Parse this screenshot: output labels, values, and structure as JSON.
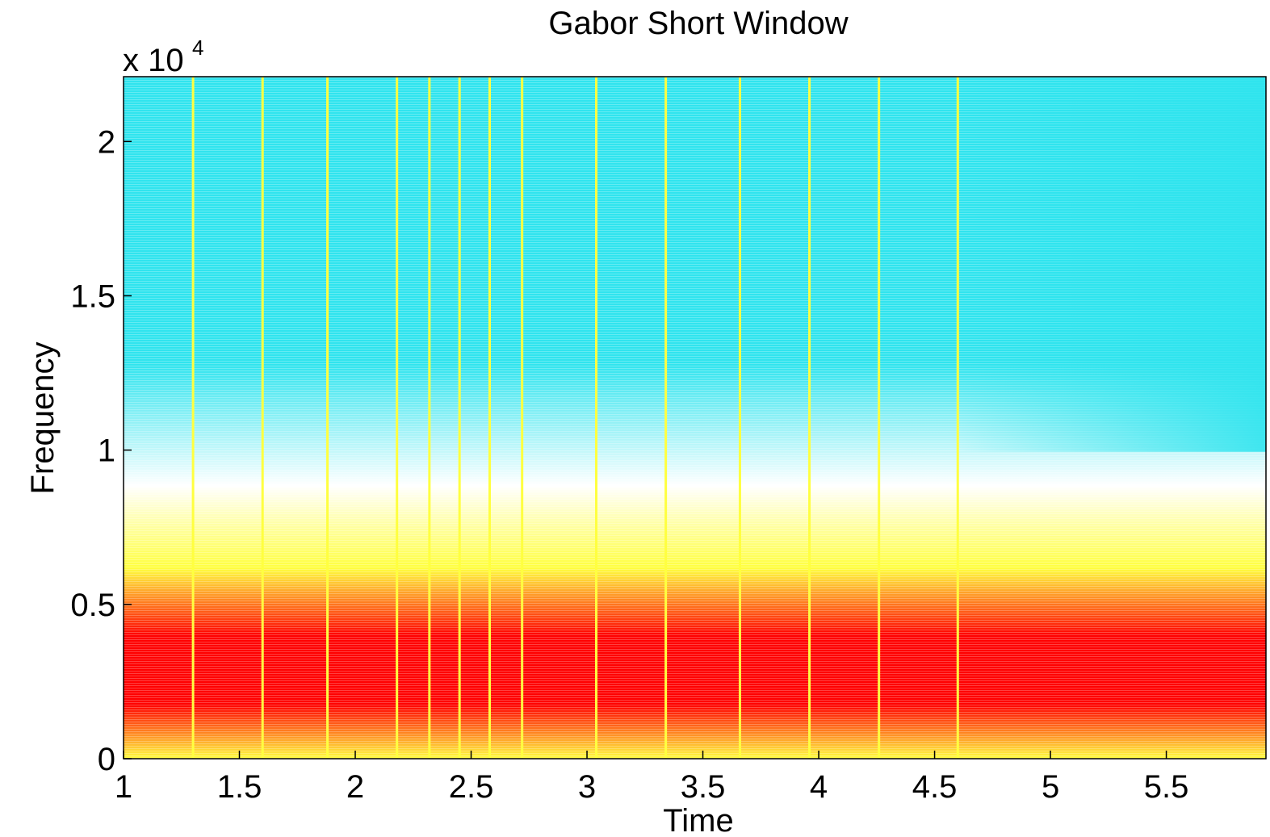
{
  "chart_data": {
    "type": "spectrogram",
    "title": "Gabor Short Window",
    "x_label": "Time",
    "y_label": "Frequency",
    "y_exponent_base": "x 10",
    "y_exponent": "4",
    "xlim": [
      1,
      5.93
    ],
    "ylim": [
      0,
      2.21
    ],
    "xticks": [
      1,
      1.5,
      2,
      2.5,
      3,
      3.5,
      4,
      4.5,
      5,
      5.5
    ],
    "yticks": [
      0,
      0.5,
      1,
      1.5,
      2
    ],
    "onsets": [
      1.3,
      1.6,
      1.88,
      2.18,
      2.32,
      2.45,
      2.58,
      2.72,
      3.04,
      3.34,
      3.66,
      3.96,
      4.26,
      4.6
    ],
    "colormap": [
      "#30e4ee",
      "#ffffff",
      "#ffff40",
      "#ff0000"
    ]
  }
}
